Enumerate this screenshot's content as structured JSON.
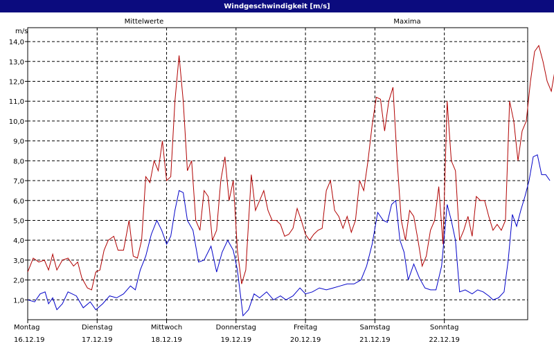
{
  "window": {
    "title": "Windgeschwindigkeit [m/s]"
  },
  "colors": {
    "titlebar": "#0b0b7e",
    "mean_series": "#0000c8",
    "max_series": "#b00000",
    "grid": "#000000",
    "plot_border": "#000000"
  },
  "chart_data": {
    "type": "line",
    "title": "Windgeschwindigkeit [m/s]",
    "ylabel": "m/s",
    "ylim": [
      0,
      14.7
    ],
    "yticks": [
      "1,0",
      "2,0",
      "3,0",
      "4,0",
      "5,0",
      "6,0",
      "7,0",
      "8,0",
      "9,0",
      "10,0",
      "11,0",
      "12,0",
      "13,0",
      "14,0"
    ],
    "ytick_values": [
      1,
      2,
      3,
      4,
      5,
      6,
      7,
      8,
      9,
      10,
      11,
      12,
      13,
      14
    ],
    "xlim": [
      0,
      7.2
    ],
    "x_ticks": [
      {
        "day": "Montag",
        "date": "16.12.19",
        "x": 0
      },
      {
        "day": "Dienstag",
        "date": "17.12.19",
        "x": 1
      },
      {
        "day": "Mittwoch",
        "date": "18.12.19",
        "x": 2
      },
      {
        "day": "Donnerstag",
        "date": "19.12.19",
        "x": 3
      },
      {
        "day": "Freitag",
        "date": "20.12.19",
        "x": 4
      },
      {
        "day": "Samstag",
        "date": "21.12.19",
        "x": 5
      },
      {
        "day": "Sonntag",
        "date": "22.12.19",
        "x": 6
      }
    ],
    "grid": true,
    "legend_placement": "top",
    "series": [
      {
        "name": "Mittelwerte",
        "color": "#0000c8",
        "points": [
          [
            0.0,
            1.0
          ],
          [
            0.1,
            0.9
          ],
          [
            0.18,
            1.3
          ],
          [
            0.25,
            1.4
          ],
          [
            0.3,
            0.8
          ],
          [
            0.36,
            1.1
          ],
          [
            0.42,
            0.5
          ],
          [
            0.5,
            0.8
          ],
          [
            0.58,
            1.4
          ],
          [
            0.7,
            1.2
          ],
          [
            0.8,
            0.6
          ],
          [
            0.9,
            0.9
          ],
          [
            0.98,
            0.5
          ],
          [
            1.08,
            0.8
          ],
          [
            1.18,
            1.2
          ],
          [
            1.28,
            1.1
          ],
          [
            1.38,
            1.3
          ],
          [
            1.48,
            1.7
          ],
          [
            1.55,
            1.5
          ],
          [
            1.62,
            2.5
          ],
          [
            1.7,
            3.2
          ],
          [
            1.78,
            4.3
          ],
          [
            1.86,
            5.0
          ],
          [
            1.93,
            4.5
          ],
          [
            2.0,
            3.8
          ],
          [
            2.06,
            4.2
          ],
          [
            2.12,
            5.5
          ],
          [
            2.18,
            6.5
          ],
          [
            2.24,
            6.4
          ],
          [
            2.3,
            5.0
          ],
          [
            2.38,
            4.5
          ],
          [
            2.46,
            2.9
          ],
          [
            2.54,
            3.0
          ],
          [
            2.64,
            3.7
          ],
          [
            2.72,
            2.4
          ],
          [
            2.8,
            3.4
          ],
          [
            2.88,
            4.0
          ],
          [
            2.96,
            3.5
          ],
          [
            3.02,
            2.5
          ],
          [
            3.1,
            0.2
          ],
          [
            3.18,
            0.5
          ],
          [
            3.26,
            1.3
          ],
          [
            3.34,
            1.1
          ],
          [
            3.44,
            1.4
          ],
          [
            3.54,
            1.0
          ],
          [
            3.64,
            1.2
          ],
          [
            3.72,
            1.0
          ],
          [
            3.82,
            1.2
          ],
          [
            3.92,
            1.6
          ],
          [
            4.0,
            1.3
          ],
          [
            4.1,
            1.4
          ],
          [
            4.2,
            1.6
          ],
          [
            4.3,
            1.5
          ],
          [
            4.4,
            1.6
          ],
          [
            4.5,
            1.7
          ],
          [
            4.6,
            1.8
          ],
          [
            4.7,
            1.8
          ],
          [
            4.8,
            2.0
          ],
          [
            4.88,
            2.7
          ],
          [
            4.96,
            3.8
          ],
          [
            5.04,
            5.4
          ],
          [
            5.12,
            5.0
          ],
          [
            5.18,
            4.9
          ],
          [
            5.24,
            5.8
          ],
          [
            5.3,
            6.0
          ],
          [
            5.36,
            4.0
          ],
          [
            5.42,
            3.4
          ],
          [
            5.48,
            2.0
          ],
          [
            5.56,
            2.8
          ],
          [
            5.64,
            2.1
          ],
          [
            5.72,
            1.6
          ],
          [
            5.8,
            1.5
          ],
          [
            5.88,
            1.5
          ],
          [
            5.96,
            2.7
          ],
          [
            6.04,
            5.8
          ],
          [
            6.1,
            5.0
          ],
          [
            6.16,
            4.0
          ],
          [
            6.22,
            1.4
          ],
          [
            6.3,
            1.5
          ],
          [
            6.4,
            1.3
          ],
          [
            6.48,
            1.5
          ],
          [
            6.56,
            1.4
          ],
          [
            6.64,
            1.2
          ],
          [
            6.7,
            1.0
          ],
          [
            6.78,
            1.1
          ],
          [
            6.86,
            1.4
          ],
          [
            6.92,
            3.0
          ],
          [
            6.98,
            5.3
          ],
          [
            7.04,
            4.7
          ],
          [
            7.1,
            5.5
          ],
          [
            7.16,
            6.2
          ],
          [
            7.22,
            7.0
          ],
          [
            7.28,
            8.2
          ],
          [
            7.34,
            8.3
          ],
          [
            7.4,
            7.3
          ],
          [
            7.46,
            7.3
          ],
          [
            7.52,
            7.0
          ]
        ]
      },
      {
        "name": "Maxima",
        "color": "#b00000",
        "points": [
          [
            0.0,
            2.4
          ],
          [
            0.08,
            3.1
          ],
          [
            0.16,
            2.9
          ],
          [
            0.24,
            3.0
          ],
          [
            0.3,
            2.5
          ],
          [
            0.36,
            3.3
          ],
          [
            0.42,
            2.5
          ],
          [
            0.5,
            3.0
          ],
          [
            0.58,
            3.1
          ],
          [
            0.66,
            2.7
          ],
          [
            0.72,
            2.9
          ],
          [
            0.78,
            2.1
          ],
          [
            0.86,
            1.6
          ],
          [
            0.92,
            1.5
          ],
          [
            0.98,
            2.4
          ],
          [
            1.04,
            2.5
          ],
          [
            1.1,
            3.5
          ],
          [
            1.16,
            4.0
          ],
          [
            1.24,
            4.2
          ],
          [
            1.3,
            3.5
          ],
          [
            1.38,
            3.5
          ],
          [
            1.46,
            5.0
          ],
          [
            1.52,
            3.2
          ],
          [
            1.58,
            3.1
          ],
          [
            1.64,
            4.0
          ],
          [
            1.7,
            7.2
          ],
          [
            1.76,
            6.9
          ],
          [
            1.82,
            8.0
          ],
          [
            1.88,
            7.5
          ],
          [
            1.94,
            9.0
          ],
          [
            2.0,
            7.0
          ],
          [
            2.06,
            7.2
          ],
          [
            2.12,
            11.0
          ],
          [
            2.18,
            13.3
          ],
          [
            2.24,
            11.0
          ],
          [
            2.3,
            7.5
          ],
          [
            2.36,
            8.0
          ],
          [
            2.42,
            5.0
          ],
          [
            2.48,
            4.5
          ],
          [
            2.54,
            6.5
          ],
          [
            2.6,
            6.2
          ],
          [
            2.66,
            4.0
          ],
          [
            2.72,
            4.5
          ],
          [
            2.78,
            7.0
          ],
          [
            2.84,
            8.2
          ],
          [
            2.9,
            6.0
          ],
          [
            2.96,
            7.0
          ],
          [
            3.02,
            3.5
          ],
          [
            3.08,
            1.8
          ],
          [
            3.14,
            2.5
          ],
          [
            3.22,
            7.3
          ],
          [
            3.28,
            5.5
          ],
          [
            3.34,
            6.0
          ],
          [
            3.4,
            6.5
          ],
          [
            3.46,
            5.5
          ],
          [
            3.52,
            5.0
          ],
          [
            3.58,
            5.0
          ],
          [
            3.64,
            4.8
          ],
          [
            3.7,
            4.2
          ],
          [
            3.76,
            4.3
          ],
          [
            3.82,
            4.6
          ],
          [
            3.88,
            5.6
          ],
          [
            3.94,
            5.0
          ],
          [
            4.0,
            4.3
          ],
          [
            4.06,
            4.0
          ],
          [
            4.12,
            4.3
          ],
          [
            4.18,
            4.5
          ],
          [
            4.24,
            4.6
          ],
          [
            4.3,
            6.5
          ],
          [
            4.36,
            7.0
          ],
          [
            4.42,
            5.5
          ],
          [
            4.48,
            5.2
          ],
          [
            4.54,
            4.6
          ],
          [
            4.6,
            5.2
          ],
          [
            4.66,
            4.4
          ],
          [
            4.72,
            5.0
          ],
          [
            4.78,
            7.0
          ],
          [
            4.84,
            6.5
          ],
          [
            4.9,
            8.0
          ],
          [
            4.96,
            9.8
          ],
          [
            5.02,
            11.2
          ],
          [
            5.08,
            11.1
          ],
          [
            5.14,
            9.5
          ],
          [
            5.2,
            11.0
          ],
          [
            5.26,
            11.7
          ],
          [
            5.32,
            8.0
          ],
          [
            5.38,
            5.0
          ],
          [
            5.44,
            4.0
          ],
          [
            5.5,
            5.5
          ],
          [
            5.56,
            5.2
          ],
          [
            5.62,
            4.0
          ],
          [
            5.68,
            2.7
          ],
          [
            5.74,
            3.2
          ],
          [
            5.8,
            4.5
          ],
          [
            5.86,
            5.0
          ],
          [
            5.92,
            6.7
          ],
          [
            5.98,
            3.8
          ],
          [
            6.04,
            11.0
          ],
          [
            6.1,
            8.0
          ],
          [
            6.16,
            7.5
          ],
          [
            6.22,
            4.0
          ],
          [
            6.28,
            4.5
          ],
          [
            6.34,
            5.2
          ],
          [
            6.4,
            4.2
          ],
          [
            6.46,
            6.2
          ],
          [
            6.52,
            6.0
          ],
          [
            6.58,
            6.0
          ],
          [
            6.64,
            5.2
          ],
          [
            6.7,
            4.5
          ],
          [
            6.76,
            4.8
          ],
          [
            6.82,
            4.5
          ],
          [
            6.88,
            5.0
          ],
          [
            6.94,
            11.0
          ],
          [
            7.0,
            10.0
          ],
          [
            7.06,
            8.0
          ],
          [
            7.12,
            9.5
          ],
          [
            7.18,
            10.0
          ],
          [
            7.24,
            12.0
          ],
          [
            7.3,
            13.5
          ],
          [
            7.36,
            13.8
          ],
          [
            7.42,
            13.0
          ],
          [
            7.48,
            12.0
          ],
          [
            7.54,
            11.5
          ],
          [
            7.6,
            12.7
          ],
          [
            7.66,
            10.5
          ]
        ]
      }
    ]
  }
}
